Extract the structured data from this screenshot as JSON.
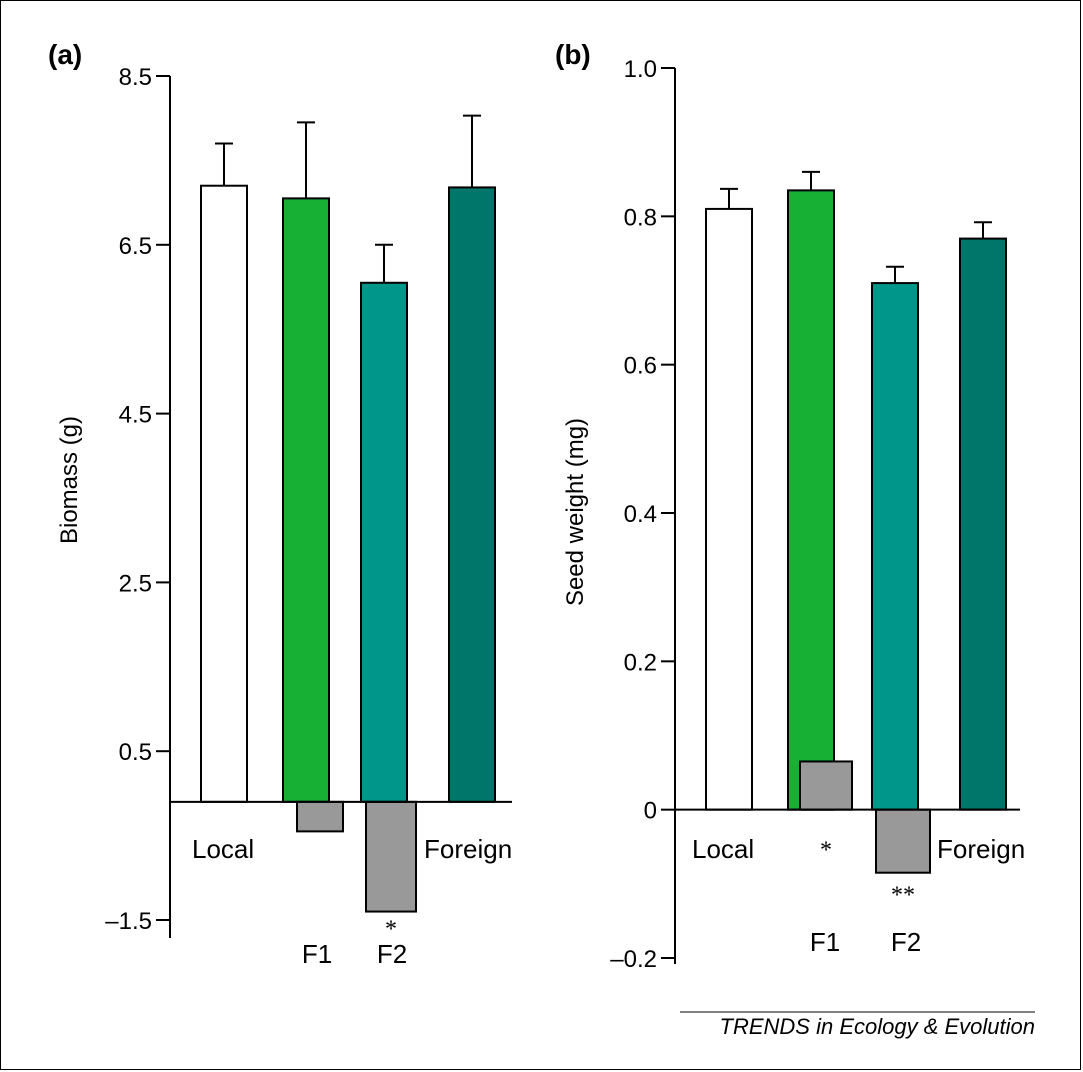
{
  "credit": "TRENDS in Ecology & Evolution",
  "chart_data": [
    {
      "panel": "(a)",
      "type": "bar",
      "ylabel": "Biomass (g)",
      "ylim": [
        -1.5,
        8.5
      ],
      "yticks": [
        -1.5,
        0.5,
        2.5,
        4.5,
        6.5,
        8.5
      ],
      "ytick_labels": [
        "–1.5",
        "0.5",
        "2.5",
        "4.5",
        "6.5",
        "8.5"
      ],
      "baseline": -0.1,
      "bars": [
        {
          "category": "Local",
          "value": 7.2,
          "error": 0.5,
          "color": "#ffffff"
        },
        {
          "category": "F1",
          "value": 7.05,
          "error": 0.9,
          "color": "#17b035"
        },
        {
          "category": "F2",
          "value": 6.05,
          "error": 0.45,
          "color": "#00968a"
        },
        {
          "category": "Foreign",
          "value": 7.18,
          "error": 0.85,
          "color": "#00756a"
        }
      ],
      "deviations": [
        {
          "category": "F1",
          "value": -0.35,
          "sig": "",
          "color": "#999999"
        },
        {
          "category": "F2",
          "value": -1.3,
          "sig": "*",
          "color": "#999999"
        }
      ],
      "grid": false,
      "legend": "none"
    },
    {
      "panel": "(b)",
      "type": "bar",
      "ylabel": "Seed weight (mg)",
      "ylim": [
        -0.2,
        1.0
      ],
      "yticks": [
        -0.2,
        0,
        0.2,
        0.4,
        0.6,
        0.8,
        1.0
      ],
      "ytick_labels": [
        "–0.2",
        "0",
        "0.2",
        "0.4",
        "0.6",
        "0.8",
        "1.0"
      ],
      "baseline": 0,
      "bars": [
        {
          "category": "Local",
          "value": 0.81,
          "error": 0.027,
          "color": "#ffffff"
        },
        {
          "category": "F1",
          "value": 0.835,
          "error": 0.025,
          "color": "#17b035"
        },
        {
          "category": "F2",
          "value": 0.71,
          "error": 0.022,
          "color": "#00968a"
        },
        {
          "category": "Foreign",
          "value": 0.77,
          "error": 0.022,
          "color": "#00756a"
        }
      ],
      "deviations": [
        {
          "category": "F1",
          "value": 0.065,
          "sig": "*",
          "color": "#999999"
        },
        {
          "category": "F2",
          "value": -0.085,
          "sig": "**",
          "color": "#999999"
        }
      ],
      "grid": false,
      "legend": "none"
    }
  ]
}
